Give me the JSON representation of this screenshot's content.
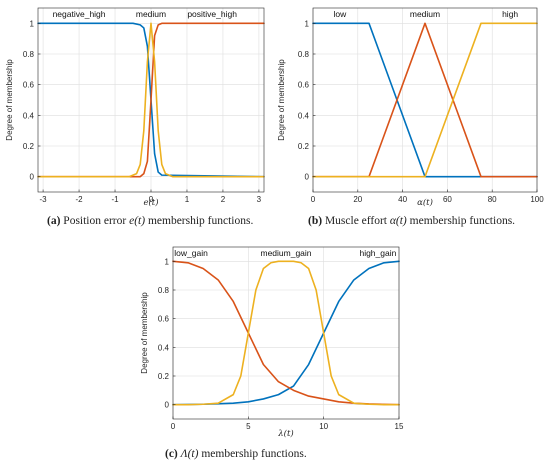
{
  "chart_data": [
    {
      "type": "line",
      "panel": "a",
      "ylabel": "Degree of membership",
      "xlabel": "e(t)",
      "xlim": [
        -3.14159,
        3.14159
      ],
      "ylim": [
        -0.1,
        1.1
      ],
      "xticks": [
        -3,
        -2,
        -1,
        0,
        1,
        2,
        3
      ],
      "xtick_labels": [
        "-3",
        "-2",
        "-1",
        "0",
        "1",
        "2",
        "3"
      ],
      "yticks": [
        0,
        0.2,
        0.4,
        0.6,
        0.8,
        1
      ],
      "ytick_labels": [
        "0",
        "0.2",
        "0.4",
        "0.6",
        "0.8",
        "1"
      ],
      "grid": true,
      "membership_labels": [
        {
          "text": "negative_high",
          "x": -2.0
        },
        {
          "text": "medium",
          "x": 0.0
        },
        {
          "text": "positive_high",
          "x": 1.7
        }
      ],
      "series": [
        {
          "color": "#0072BD",
          "x": [
            -3.14,
            -0.5,
            -0.3,
            -0.2,
            -0.1,
            0,
            0.1,
            0.2,
            0.3,
            3.14
          ],
          "y": [
            1,
            1,
            0.99,
            0.97,
            0.85,
            0.5,
            0.15,
            0.03,
            0.01,
            0
          ]
        },
        {
          "color": "#D95319",
          "x": [
            -3.14,
            -0.3,
            -0.2,
            -0.1,
            0,
            0.1,
            0.2,
            0.3,
            3.14
          ],
          "y": [
            0,
            0,
            0.02,
            0.1,
            0.5,
            0.92,
            0.99,
            1,
            1
          ]
        },
        {
          "color": "#EDB120",
          "x": [
            -3.14,
            -0.6,
            -0.4,
            -0.3,
            -0.2,
            -0.1,
            0,
            0.1,
            0.2,
            0.3,
            0.4,
            0.6,
            3.14
          ],
          "y": [
            0,
            0,
            0.02,
            0.08,
            0.3,
            0.75,
            1,
            0.75,
            0.3,
            0.08,
            0.02,
            0,
            0
          ]
        }
      ]
    },
    {
      "type": "line",
      "panel": "b",
      "ylabel": "Degree of membership",
      "xlabel": "α(t)",
      "xlim": [
        0,
        100
      ],
      "ylim": [
        -0.1,
        1.1
      ],
      "xticks": [
        0,
        20,
        40,
        60,
        80,
        100
      ],
      "xtick_labels": [
        "0",
        "20",
        "40",
        "60",
        "80",
        "100"
      ],
      "yticks": [
        0,
        0.2,
        0.4,
        0.6,
        0.8,
        1
      ],
      "ytick_labels": [
        "0",
        "0.2",
        "0.4",
        "0.6",
        "0.8",
        "1"
      ],
      "grid": true,
      "membership_labels": [
        {
          "text": "low",
          "x": 12
        },
        {
          "text": "medium",
          "x": 50
        },
        {
          "text": "high",
          "x": 88
        }
      ],
      "series": [
        {
          "color": "#0072BD",
          "x": [
            0,
            25,
            50,
            100
          ],
          "y": [
            1,
            1,
            0,
            0
          ]
        },
        {
          "color": "#D95319",
          "x": [
            0,
            25,
            50,
            75,
            100
          ],
          "y": [
            0,
            0,
            1,
            0,
            0
          ]
        },
        {
          "color": "#EDB120",
          "x": [
            0,
            50,
            75,
            100
          ],
          "y": [
            0,
            0,
            1,
            1
          ]
        }
      ]
    },
    {
      "type": "line",
      "panel": "c",
      "ylabel": "Degree of membership",
      "xlabel": "λ(t)",
      "xlim": [
        0,
        15
      ],
      "ylim": [
        -0.1,
        1.1
      ],
      "xticks": [
        0,
        5,
        10,
        15
      ],
      "xtick_labels": [
        "0",
        "5",
        "10",
        "15"
      ],
      "yticks": [
        0,
        0.2,
        0.4,
        0.6,
        0.8,
        1
      ],
      "ytick_labels": [
        "0",
        "0.2",
        "0.4",
        "0.6",
        "0.8",
        "1"
      ],
      "grid": true,
      "membership_labels": [
        {
          "text": "low_gain",
          "x": 1.2
        },
        {
          "text": "medium_gain",
          "x": 7.5
        },
        {
          "text": "high_gain",
          "x": 13.6
        }
      ],
      "series": [
        {
          "color": "#0072BD",
          "x": [
            0,
            2,
            4,
            5,
            6,
            7,
            8,
            9,
            10,
            11,
            12,
            13,
            14,
            15
          ],
          "y": [
            0,
            0.003,
            0.01,
            0.02,
            0.04,
            0.07,
            0.13,
            0.28,
            0.5,
            0.72,
            0.87,
            0.95,
            0.99,
            1
          ]
        },
        {
          "color": "#D95319",
          "x": [
            0,
            1,
            2,
            3,
            4,
            5,
            6,
            7,
            8,
            9,
            10,
            11,
            12,
            13,
            15
          ],
          "y": [
            1,
            0.99,
            0.95,
            0.87,
            0.72,
            0.5,
            0.28,
            0.16,
            0.1,
            0.06,
            0.04,
            0.02,
            0.01,
            0.005,
            0
          ]
        },
        {
          "color": "#EDB120",
          "x": [
            0,
            1,
            2,
            3,
            4,
            4.5,
            5,
            5.5,
            6,
            6.5,
            7,
            8,
            8.5,
            9,
            9.5,
            10,
            10.5,
            11,
            12,
            13,
            14,
            15
          ],
          "y": [
            0,
            0,
            0.003,
            0.01,
            0.07,
            0.2,
            0.5,
            0.8,
            0.95,
            0.99,
            1,
            1,
            0.99,
            0.95,
            0.8,
            0.5,
            0.2,
            0.07,
            0.01,
            0.003,
            0,
            0
          ]
        }
      ]
    }
  ],
  "captions": {
    "a": {
      "tag": "(a)",
      "text": " Position error ",
      "math": "e(t)",
      "rest": " membership functions."
    },
    "b": {
      "tag": "(b)",
      "text": " Muscle effort ",
      "math": "α(t)",
      "rest": " membership functions."
    },
    "c": {
      "tag": "(c)",
      "text": " ",
      "math": "Λ(t)",
      "rest": " membership functions."
    }
  }
}
